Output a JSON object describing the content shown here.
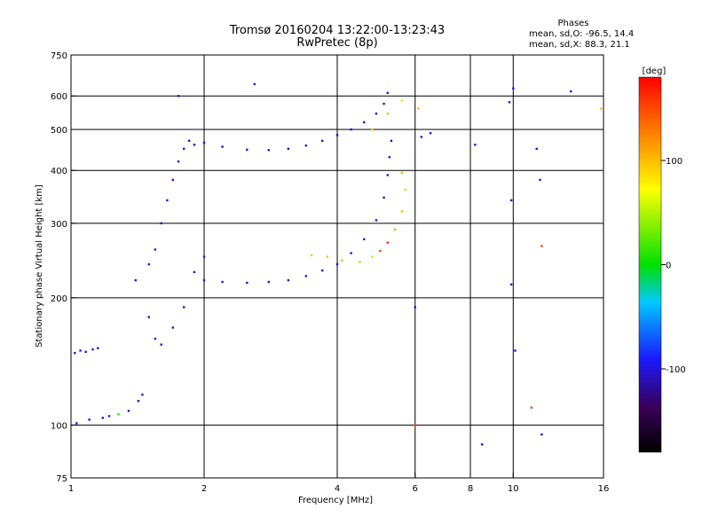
{
  "chart_data": {
    "type": "scatter",
    "title": "Tromsø 20160204 13:22:00-13:23:43",
    "subtitle": "RwPretec (8p)",
    "xlabel": "Frequency [MHz]",
    "ylabel": "Stationary phase Virtual Height [km]",
    "x_scale": "log",
    "y_scale": "log",
    "xlim": [
      1,
      16
    ],
    "ylim": [
      75,
      750
    ],
    "x_ticks": [
      1,
      2,
      4,
      6,
      8,
      10,
      16
    ],
    "x_tick_labels": [
      "1",
      "2",
      "4",
      "6",
      "8",
      "10",
      "16"
    ],
    "y_ticks": [
      75,
      100,
      200,
      300,
      400,
      500,
      600,
      750
    ],
    "y_tick_labels": [
      "75",
      "100",
      "200",
      "300",
      "400",
      "500",
      "600",
      "750"
    ],
    "x_gridlines": [
      2,
      4,
      6,
      8,
      10
    ],
    "y_gridlines": [
      100,
      200,
      300,
      400,
      500,
      600
    ],
    "grid": true,
    "phases_box": {
      "heading": "Phases",
      "line_o": "mean, sd,O: -96.5, 14.4",
      "line_x": "mean, sd,X:  88.3, 21.1"
    },
    "colorbar": {
      "unit_label": "[deg]",
      "range": [
        -180,
        180
      ],
      "ticks": [
        100,
        0,
        -100
      ],
      "tick_labels": [
        "100",
        "0",
        "-100"
      ]
    },
    "series": [
      {
        "values": [
          [
            1.02,
            148,
            -95
          ],
          [
            1.05,
            150,
            -100
          ],
          [
            1.08,
            149,
            -98
          ],
          [
            1.12,
            151,
            -96
          ],
          [
            1.15,
            152,
            -100
          ],
          [
            1.03,
            101,
            -95
          ],
          [
            1.1,
            103,
            -98
          ],
          [
            1.18,
            104,
            -102
          ],
          [
            1.22,
            105,
            -90
          ],
          [
            1.28,
            106,
            10
          ],
          [
            1.35,
            108,
            -95
          ],
          [
            1.42,
            114,
            -100
          ],
          [
            1.45,
            118,
            -98
          ]
        ]
      },
      {
        "values": [
          [
            1.4,
            220,
            -100
          ],
          [
            1.5,
            240,
            -95
          ],
          [
            1.55,
            260,
            -105
          ],
          [
            1.6,
            300,
            -100
          ],
          [
            1.65,
            340,
            -98
          ],
          [
            1.7,
            380,
            -102
          ],
          [
            1.75,
            420,
            -100
          ],
          [
            1.8,
            450,
            -95
          ],
          [
            1.85,
            470,
            -98
          ],
          [
            1.9,
            460,
            -100
          ],
          [
            1.5,
            180,
            -100
          ],
          [
            1.55,
            160,
            -95
          ],
          [
            1.6,
            155,
            -100
          ],
          [
            1.7,
            170,
            -98
          ],
          [
            1.8,
            190,
            -102
          ],
          [
            1.9,
            230,
            -100
          ],
          [
            2.0,
            250,
            -95
          ],
          [
            1.75,
            600,
            -100
          ]
        ]
      },
      {
        "values": [
          [
            2.0,
            220,
            -100
          ],
          [
            2.2,
            218,
            -98
          ],
          [
            2.5,
            217,
            -100
          ],
          [
            2.8,
            218,
            -95
          ],
          [
            3.1,
            220,
            -100
          ],
          [
            3.4,
            225,
            -98
          ],
          [
            3.7,
            232,
            -100
          ],
          [
            4.0,
            240,
            -102
          ],
          [
            4.3,
            255,
            -100
          ],
          [
            4.6,
            275,
            -96
          ],
          [
            4.9,
            305,
            -100
          ],
          [
            5.1,
            345,
            -98
          ],
          [
            5.2,
            390,
            -100
          ],
          [
            5.25,
            430,
            -102
          ],
          [
            5.3,
            470,
            -100
          ]
        ]
      },
      {
        "values": [
          [
            2.0,
            465,
            -100
          ],
          [
            2.2,
            455,
            -98
          ],
          [
            2.5,
            448,
            -100
          ],
          [
            2.8,
            447,
            -95
          ],
          [
            3.1,
            450,
            -100
          ],
          [
            3.4,
            458,
            -98
          ],
          [
            3.7,
            470,
            -100
          ],
          [
            4.0,
            485,
            -102
          ],
          [
            4.3,
            500,
            -100
          ],
          [
            4.6,
            520,
            -96
          ],
          [
            4.9,
            545,
            -100
          ],
          [
            5.1,
            575,
            -98
          ],
          [
            5.2,
            610,
            -100
          ],
          [
            2.6,
            640,
            -100
          ]
        ]
      },
      {
        "values": [
          [
            3.5,
            252,
            95
          ],
          [
            3.8,
            250,
            100
          ],
          [
            4.1,
            245,
            105
          ],
          [
            4.5,
            243,
            98
          ],
          [
            4.8,
            250,
            92
          ],
          [
            5.0,
            258,
            150
          ],
          [
            5.2,
            270,
            160
          ],
          [
            5.4,
            290,
            110
          ],
          [
            5.6,
            320,
            100
          ],
          [
            5.7,
            360,
            90
          ],
          [
            5.6,
            395,
            105
          ],
          [
            4.8,
            500,
            95
          ],
          [
            5.2,
            545,
            100
          ],
          [
            5.6,
            585,
            90
          ]
        ]
      },
      {
        "values": [
          [
            6.1,
            560,
            100
          ],
          [
            6.2,
            480,
            -100
          ],
          [
            6.0,
            100,
            150
          ],
          [
            6.0,
            190,
            -100
          ],
          [
            6.5,
            490,
            -100
          ],
          [
            8.2,
            460,
            -100
          ],
          [
            8.5,
            90,
            -100
          ],
          [
            9.8,
            580,
            -100
          ],
          [
            10.0,
            625,
            -100
          ],
          [
            9.9,
            340,
            -100
          ],
          [
            9.9,
            215,
            -100
          ],
          [
            10.1,
            150,
            -100
          ],
          [
            11.0,
            110,
            150
          ],
          [
            11.3,
            450,
            -100
          ],
          [
            11.5,
            380,
            -100
          ],
          [
            11.6,
            95,
            -100
          ],
          [
            11.6,
            265,
            150
          ],
          [
            13.5,
            615,
            -100
          ],
          [
            15.8,
            560,
            100
          ]
        ]
      }
    ]
  }
}
